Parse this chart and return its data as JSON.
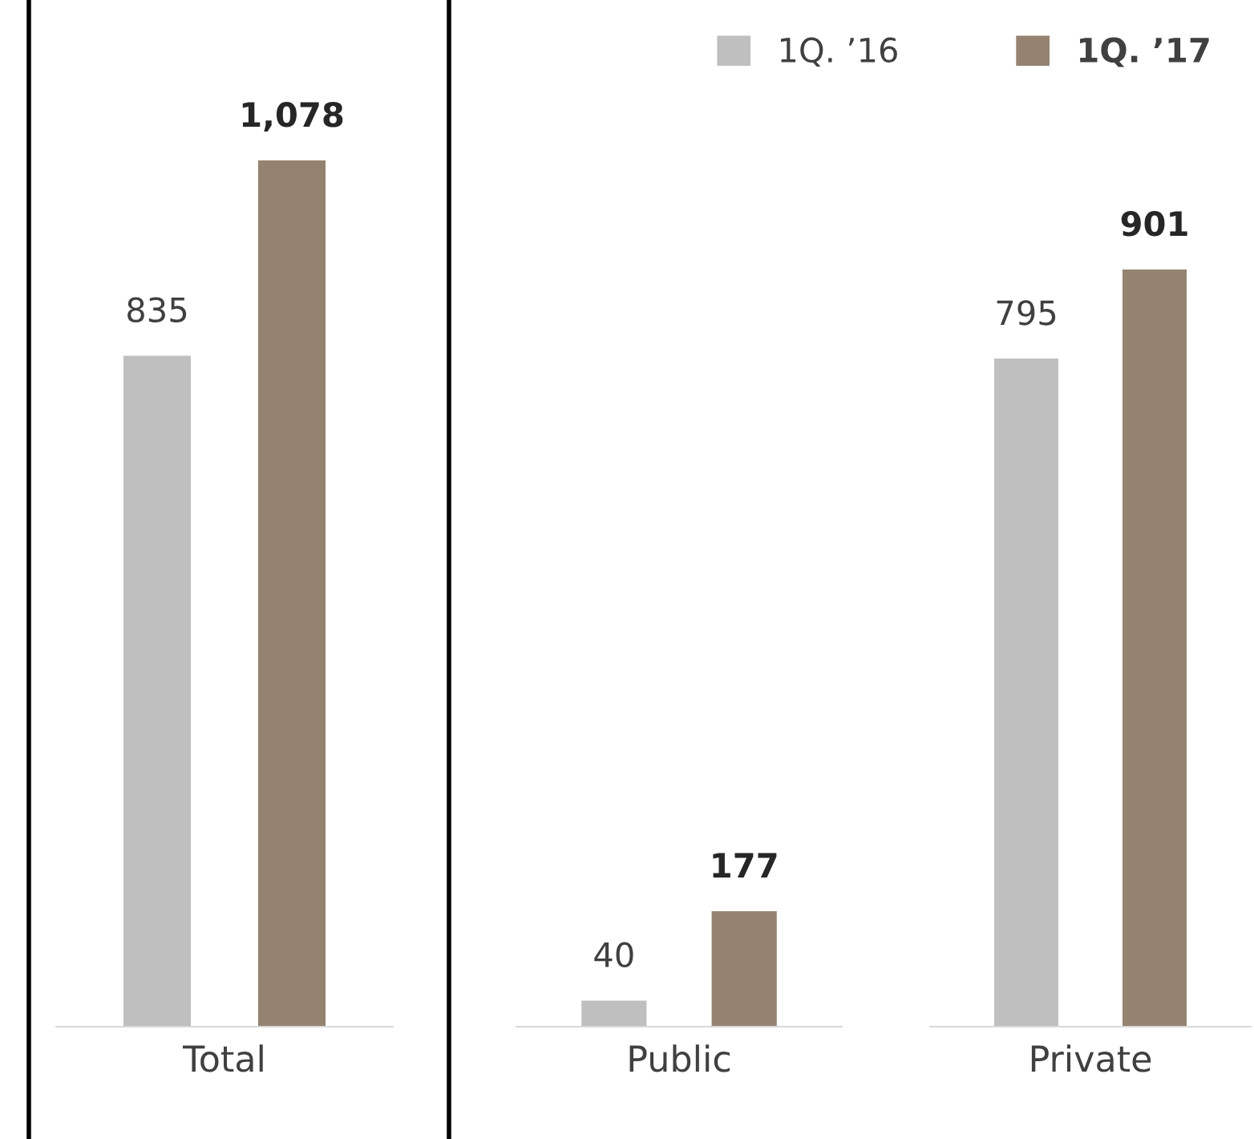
{
  "chart_data": [
    {
      "type": "bar",
      "categories": [
        "Total"
      ],
      "legend": "top right",
      "series": [
        {
          "name": "1Q. ’16",
          "color": "#bfbfbf",
          "values": [
            835
          ],
          "value_labels": [
            "835"
          ]
        },
        {
          "name": "1Q. ’17",
          "color": "#948370",
          "values": [
            1078
          ],
          "value_labels": [
            "1,078"
          ]
        }
      ]
    },
    {
      "type": "bar",
      "categories": [
        "Public"
      ],
      "series": [
        {
          "color": "#bfbfbf",
          "values": [
            40
          ],
          "value_labels": [
            "40"
          ]
        },
        {
          "color": "#948370",
          "values": [
            177
          ],
          "value_labels": [
            "177"
          ]
        }
      ]
    },
    {
      "type": "bar",
      "categories": [
        "Private"
      ],
      "series": [
        {
          "color": "#bfbfbf",
          "values": [
            795
          ],
          "value_labels": [
            "795"
          ]
        },
        {
          "color": "#948370",
          "values": [
            901
          ],
          "value_labels": [
            "901"
          ]
        }
      ]
    }
  ]
}
